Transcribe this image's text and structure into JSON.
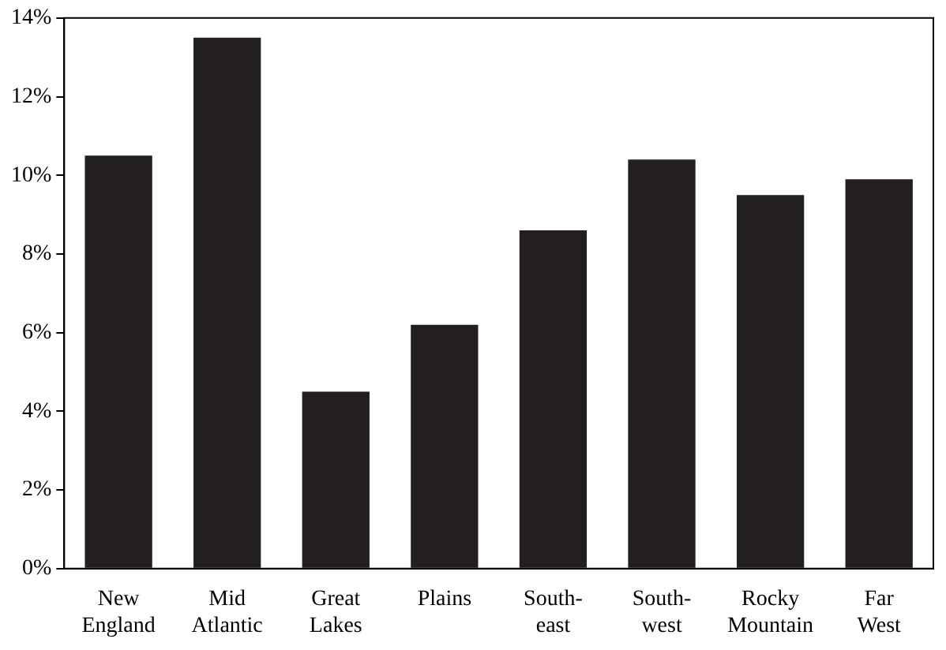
{
  "chart_data": {
    "type": "bar",
    "categories": [
      "New England",
      "Mid Atlantic",
      "Great Lakes",
      "Plains",
      "South-east",
      "South-west",
      "Rocky Mountain",
      "Far West"
    ],
    "values": [
      10.5,
      13.5,
      4.5,
      6.2,
      8.6,
      10.4,
      9.5,
      9.9
    ],
    "color": "#231f20",
    "ylim": [
      0,
      14
    ],
    "yticks": [
      {
        "value": 0,
        "label": "0%"
      },
      {
        "value": 2,
        "label": "2%"
      },
      {
        "value": 4,
        "label": "4%"
      },
      {
        "value": 6,
        "label": "6%"
      },
      {
        "value": 8,
        "label": "8%"
      },
      {
        "value": 10,
        "label": "10%"
      },
      {
        "value": 12,
        "label": "12%"
      },
      {
        "value": 14,
        "label": "14%"
      }
    ],
    "grid": false,
    "legend": false
  }
}
